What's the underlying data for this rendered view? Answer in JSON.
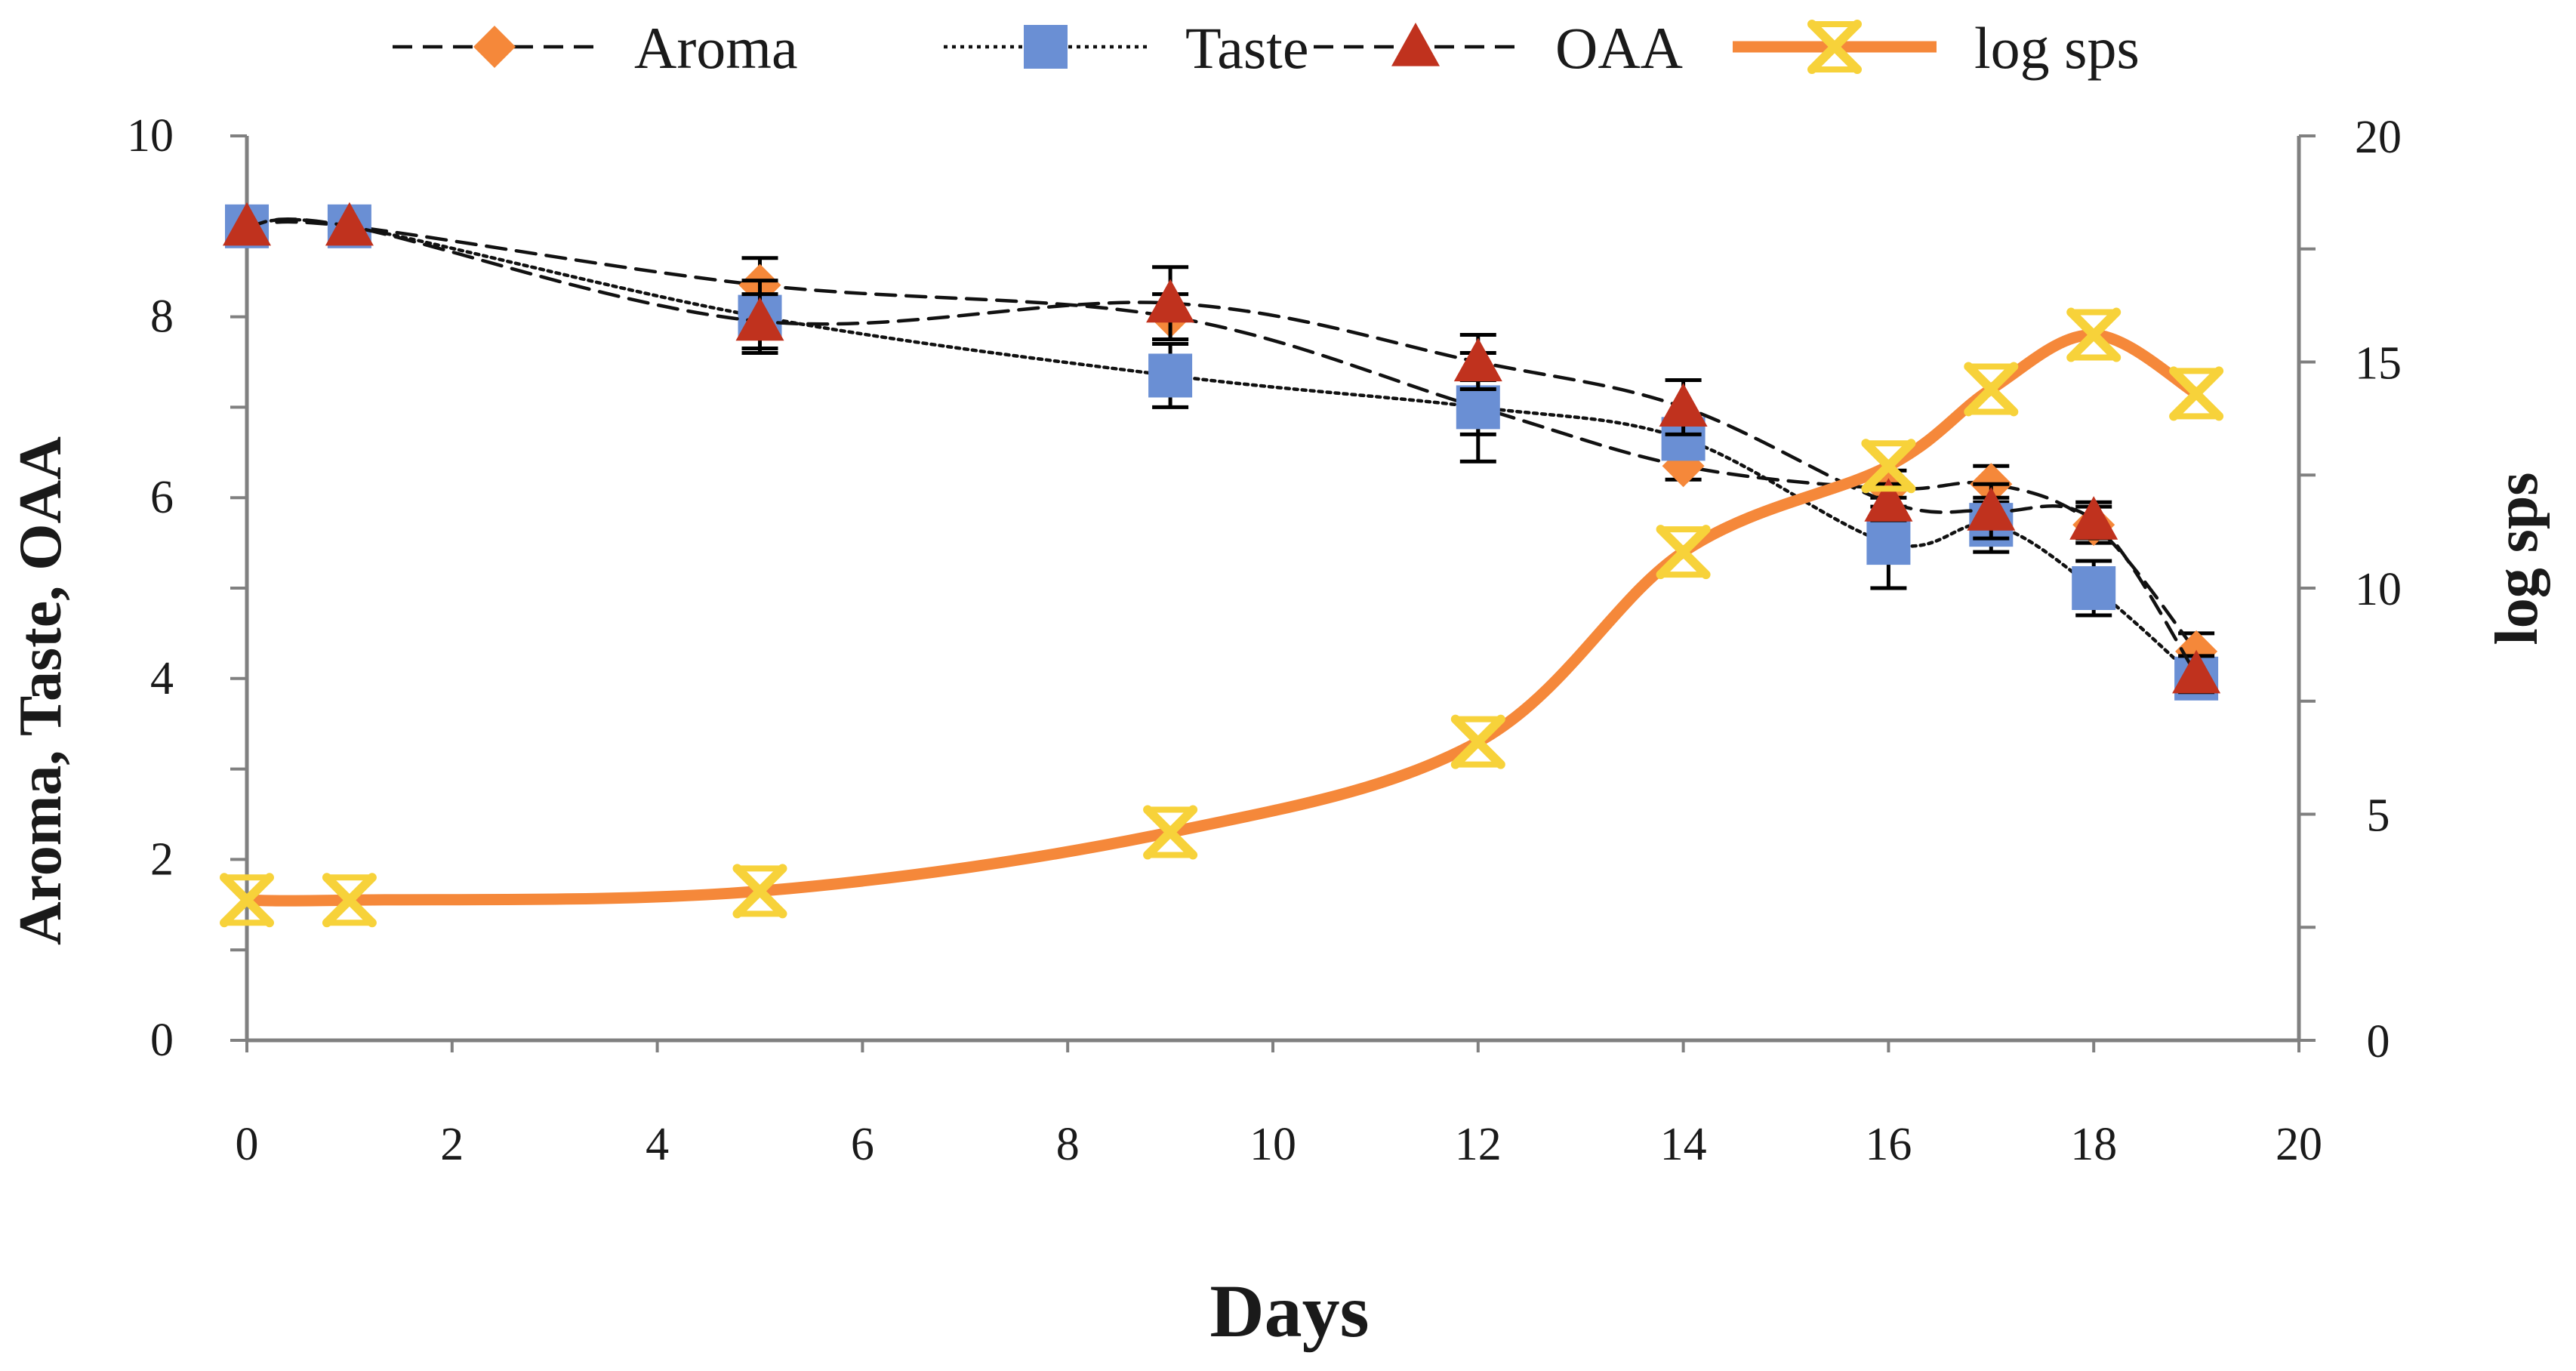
{
  "chart_data": {
    "type": "line",
    "xlabel": "Days",
    "ylabel": "Aroma,  Taste,  OAA",
    "y2label": "log sps",
    "xlim": [
      0,
      20
    ],
    "ylim": [
      0,
      10
    ],
    "y2lim": [
      0,
      20
    ],
    "x_ticks": [
      "0",
      "2",
      "4",
      "6",
      "8",
      "10",
      "12",
      "14",
      "16",
      "18",
      "20"
    ],
    "y_ticks": [
      "0",
      "2",
      "4",
      "6",
      "8",
      "10"
    ],
    "y2_ticks": [
      "0",
      "5",
      "10",
      "15",
      "20"
    ],
    "legend_position": "top",
    "series": [
      {
        "name": "Aroma",
        "axis": "left",
        "color": "#F5883A",
        "marker": "diamond",
        "line": "dashed",
        "x": [
          0,
          1,
          5,
          9,
          12,
          14,
          16,
          17,
          18,
          19
        ],
        "values": [
          9.0,
          9.0,
          8.35,
          8.0,
          7.0,
          6.35,
          6.1,
          6.15,
          5.7,
          4.3
        ],
        "error": [
          0,
          0,
          0.3,
          0.25,
          0.3,
          0.15,
          0.2,
          0.2,
          0.2,
          0.2
        ]
      },
      {
        "name": "Taste",
        "axis": "left",
        "color": "#6A8FD4",
        "marker": "square",
        "line": "dotted",
        "x": [
          0,
          1,
          5,
          9,
          12,
          14,
          16,
          17,
          18,
          19
        ],
        "values": [
          9.0,
          9.0,
          8.0,
          7.35,
          7.0,
          6.65,
          5.5,
          5.7,
          5.0,
          4.0
        ],
        "error": [
          0,
          0,
          0.4,
          0.35,
          0.6,
          0.2,
          0.5,
          0.3,
          0.3,
          0.2
        ]
      },
      {
        "name": "OAA",
        "axis": "left",
        "color": "#C0321E",
        "marker": "triangle",
        "line": "dashed",
        "x": [
          0,
          1,
          5,
          9,
          12,
          14,
          16,
          17,
          18,
          19
        ],
        "values": [
          9.0,
          9.0,
          7.95,
          8.15,
          7.5,
          7.0,
          5.95,
          5.85,
          5.75,
          4.05
        ],
        "error": [
          0,
          0,
          0.3,
          0.4,
          0.3,
          0.3,
          0.2,
          0.3,
          0.2,
          0.2
        ]
      },
      {
        "name": "log sps",
        "axis": "right",
        "color": "#F5883A",
        "marker_color": "#F7D23A",
        "marker": "x-star",
        "line": "solid",
        "x": [
          0,
          1,
          5,
          9,
          12,
          14,
          16,
          17,
          18,
          19
        ],
        "values": [
          3.1,
          3.1,
          3.3,
          4.6,
          6.6,
          10.8,
          12.7,
          14.4,
          15.6,
          14.3
        ]
      }
    ]
  }
}
